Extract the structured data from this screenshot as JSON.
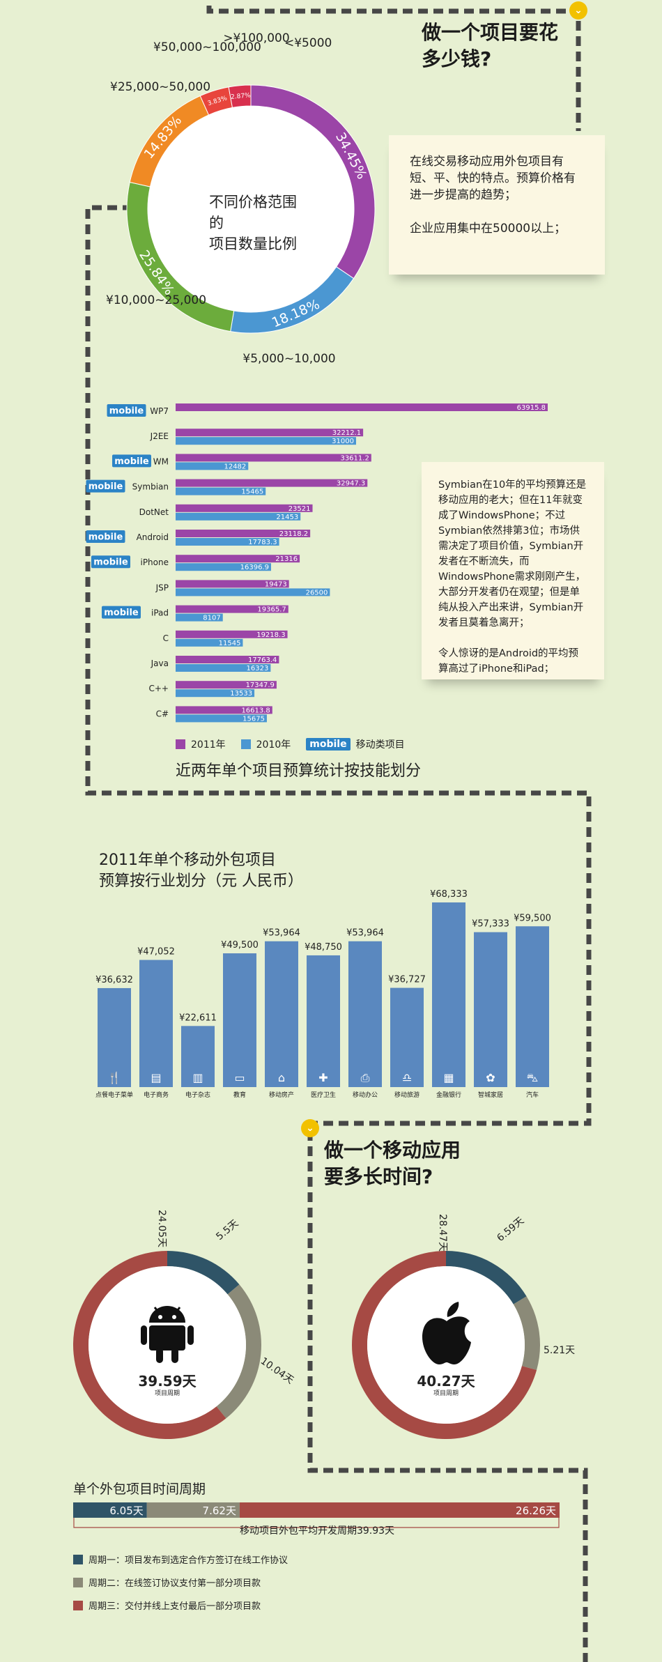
{
  "section1": {
    "heading": "做一个项目要花\n多少钱?",
    "note": "在线交易移动应用外包项目有短、平、快的特点。预算价格有进一步提高的趋势；\n\n企业应用集中在50000以上；",
    "donut_center": "不同价格范围的\n项目数量比例"
  },
  "section2": {
    "note": "Symbian在10年的平均预算还是移动应用的老大；但在11年就变成了WindowsPhone；不过Symbian依然排第3位；市场供需决定了项目价值，Symbian开发者在不断流失，而WindowsPhone需求刚刚产生，大部分开发者仍在观望；但是单纯从投入产出来讲，Symbian开发者且莫着急离开；\n\n令人惊讶的是Android的平均预算高过了iPhone和iPad；",
    "legend_2011": "2011年",
    "legend_2010": "2010年",
    "legend_mobile_tag": "mobile",
    "legend_mobile_text": "移动类项目",
    "title": "近两年单个项目预算统计按技能划分"
  },
  "section3": {
    "title": "2011年单个移动外包项目\n预算按行业划分（元 人民币）"
  },
  "section4": {
    "heading": "做一个移动应用\n要多长时间?",
    "android_total": "39.59天",
    "ios_total": "40.27天",
    "cycle_label": "项目周期",
    "timeline_title": "单个外包项目时间周期",
    "timeline_caption": "移动项目外包平均开发周期39.93天",
    "phase_legend": [
      {
        "label": "周期一：项目发布到选定合作方签订在线工作协议",
        "color": "#2f5467"
      },
      {
        "label": "周期二：在线签订协议支付第一部分项目款",
        "color": "#8b8a78"
      },
      {
        "label": "周期三：交付并线上支付最后一部分项目款",
        "color": "#a64a44"
      }
    ]
  },
  "chart_data": [
    {
      "type": "pie",
      "title": "不同价格范围的项目数量比例",
      "categories": [
        "<¥5000",
        "¥5,000~10,000",
        "¥10,000~25,000",
        "¥25,000~50,000",
        "¥50,000~100,000",
        ">¥100,000"
      ],
      "values": [
        34.45,
        18.18,
        25.84,
        14.83,
        3.83,
        2.87
      ],
      "value_labels": [
        "34.45%",
        "18.18%",
        "25.84%",
        "14.83%",
        "3.83%",
        "2.87%"
      ],
      "colors": [
        "#9b45a7",
        "#4b97d2",
        "#6cac3c",
        "#f08a24",
        "#e8453c",
        "#d8304e"
      ]
    },
    {
      "type": "bar",
      "orientation": "horizontal",
      "title": "近两年单个项目预算统计按技能划分",
      "categories": [
        "WP7",
        "J2EE",
        "WM",
        "Symbian",
        "DotNet",
        "Android",
        "iPhone",
        "JSP",
        "iPad",
        "C",
        "Java",
        "C++",
        "C#"
      ],
      "mobile": [
        true,
        false,
        true,
        true,
        false,
        true,
        true,
        false,
        true,
        false,
        false,
        false,
        false
      ],
      "series": [
        {
          "name": "2011年",
          "color": "#9b45a7",
          "values": [
            63915.8,
            32212.1,
            33611.2,
            32947.3,
            23521,
            23118.2,
            21316,
            19473,
            19365.7,
            19218.3,
            17763.4,
            17347.9,
            16613.8
          ]
        },
        {
          "name": "2010年",
          "color": "#4b97d2",
          "values": [
            null,
            31000,
            12482,
            15465,
            21453,
            17783.3,
            16396.9,
            26500,
            8107,
            11545,
            16323,
            13533,
            15675
          ]
        }
      ],
      "value_labels_2011": [
        "63915.8",
        "32212.1",
        "33611.2",
        "32947.3",
        "23521",
        "23118.2",
        "21316",
        "19473",
        "19365.7",
        "19218.3",
        "17763.4",
        "17347.9",
        "16613.8"
      ],
      "value_labels_2010": [
        "",
        "31000",
        "12482",
        "15465",
        "21453",
        "17783.3",
        "16396.9",
        "26500",
        "8107",
        "11545",
        "16323",
        "13533",
        "15675"
      ]
    },
    {
      "type": "bar",
      "title": "2011年单个移动外包项目预算按行业划分（元 人民币）",
      "categories": [
        "点餐电子菜单",
        "电子商务",
        "电子杂志",
        "教育",
        "移动房产",
        "医疗卫生",
        "移动办公",
        "移动旅游",
        "金融银行",
        "智城家居",
        "汽车"
      ],
      "values": [
        36632,
        47052,
        22611,
        49500,
        53964,
        48750,
        53964,
        36727,
        68333,
        57333,
        59500
      ],
      "value_labels": [
        "¥36,632",
        "¥47,052",
        "¥22,611",
        "¥49,500",
        "¥53,964",
        "¥48,750",
        "¥53,964",
        "¥36,727",
        "¥68,333",
        "¥57,333",
        "¥59,500"
      ],
      "icons": [
        "fork-knife-icon",
        "cart-icon",
        "magazine-icon",
        "education-icon",
        "house-icon",
        "ambulance-icon",
        "printer-icon",
        "bell-icon",
        "bank-card-icon",
        "plant-icon",
        "car-icon"
      ],
      "color": "#5a88bf"
    },
    {
      "type": "pie",
      "name": "android",
      "values": [
        5.5,
        10.04,
        24.05
      ],
      "value_labels": [
        "5.5天",
        "10.04天",
        "24.05天"
      ],
      "colors": [
        "#2f5467",
        "#8b8a78",
        "#a64a44"
      ]
    },
    {
      "type": "pie",
      "name": "ios",
      "values": [
        6.59,
        5.21,
        28.47
      ],
      "value_labels": [
        "6.59天",
        "5.21天",
        "28.47天"
      ],
      "colors": [
        "#2f5467",
        "#8b8a78",
        "#a64a44"
      ]
    },
    {
      "type": "bar",
      "orientation": "horizontal-stacked",
      "title": "单个外包项目时间周期",
      "values": [
        6.05,
        7.62,
        26.26
      ],
      "value_labels": [
        "6.05天",
        "7.62天",
        "26.26天"
      ],
      "colors": [
        "#2f5467",
        "#8b8a78",
        "#a64a44"
      ]
    }
  ]
}
